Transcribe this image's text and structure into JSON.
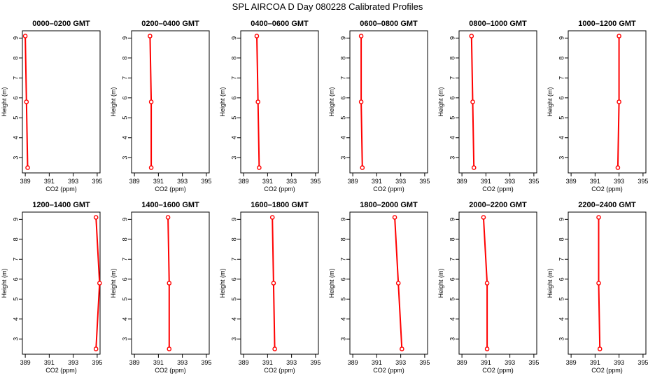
{
  "figure": {
    "title": "SPL AIRCOA D  Day 080228  Calibrated Profiles"
  },
  "style": {
    "line_color": "#ff0000",
    "point_color": "#ff0000",
    "axis_color": "#000000"
  },
  "chart_data": [
    {
      "type": "line",
      "title": "0000–0200 GMT",
      "xlabel": "CO2 (ppm)",
      "ylabel": "Height (m)",
      "xlim": [
        389,
        395
      ],
      "ylim": [
        2.5,
        9.1
      ],
      "x_ticks": [
        "389",
        "391",
        "393",
        "395"
      ],
      "y_ticks": [
        "3",
        "4",
        "5",
        "6",
        "7",
        "8",
        "9"
      ],
      "series": [
        {
          "x": [
            389.0,
            389.1,
            389.2
          ],
          "y": [
            9.1,
            5.8,
            2.5
          ]
        }
      ]
    },
    {
      "type": "line",
      "title": "0200–0400 GMT",
      "xlabel": "CO2 (ppm)",
      "ylabel": "Height (m)",
      "xlim": [
        389,
        395
      ],
      "ylim": [
        2.5,
        9.1
      ],
      "x_ticks": [
        "389",
        "391",
        "393",
        "395"
      ],
      "y_ticks": [
        "3",
        "4",
        "5",
        "6",
        "7",
        "8",
        "9"
      ],
      "series": [
        {
          "x": [
            390.3,
            390.4,
            390.4
          ],
          "y": [
            9.1,
            5.8,
            2.5
          ]
        }
      ]
    },
    {
      "type": "line",
      "title": "0400–0600 GMT",
      "xlabel": "CO2 (ppm)",
      "ylabel": "Height (m)",
      "xlim": [
        389,
        395
      ],
      "ylim": [
        2.5,
        9.1
      ],
      "x_ticks": [
        "389",
        "391",
        "393",
        "395"
      ],
      "y_ticks": [
        "3",
        "4",
        "5",
        "6",
        "7",
        "8",
        "9"
      ],
      "series": [
        {
          "x": [
            390.1,
            390.2,
            390.3
          ],
          "y": [
            9.1,
            5.8,
            2.5
          ]
        }
      ]
    },
    {
      "type": "line",
      "title": "0600–0800 GMT",
      "xlabel": "CO2 (ppm)",
      "ylabel": "Height (m)",
      "xlim": [
        389,
        395
      ],
      "ylim": [
        2.5,
        9.1
      ],
      "x_ticks": [
        "389",
        "391",
        "393",
        "395"
      ],
      "y_ticks": [
        "3",
        "4",
        "5",
        "6",
        "7",
        "8",
        "9"
      ],
      "series": [
        {
          "x": [
            389.7,
            389.7,
            389.8
          ],
          "y": [
            9.1,
            5.8,
            2.5
          ]
        }
      ]
    },
    {
      "type": "line",
      "title": "0800–1000 GMT",
      "xlabel": "CO2 (ppm)",
      "ylabel": "Height (m)",
      "xlim": [
        389,
        395
      ],
      "ylim": [
        2.5,
        9.1
      ],
      "x_ticks": [
        "389",
        "391",
        "393",
        "395"
      ],
      "y_ticks": [
        "3",
        "4",
        "5",
        "6",
        "7",
        "8",
        "9"
      ],
      "series": [
        {
          "x": [
            389.8,
            389.9,
            390.0
          ],
          "y": [
            9.1,
            5.8,
            2.5
          ]
        }
      ]
    },
    {
      "type": "line",
      "title": "1000–1200 GMT",
      "xlabel": "CO2 (ppm)",
      "ylabel": "Height (m)",
      "xlim": [
        389,
        395
      ],
      "ylim": [
        2.5,
        9.1
      ],
      "x_ticks": [
        "389",
        "391",
        "393",
        "395"
      ],
      "y_ticks": [
        "3",
        "4",
        "5",
        "6",
        "7",
        "8",
        "9"
      ],
      "series": [
        {
          "x": [
            393.0,
            393.0,
            392.9
          ],
          "y": [
            9.1,
            5.8,
            2.5
          ]
        }
      ]
    },
    {
      "type": "line",
      "title": "1200–1400 GMT",
      "xlabel": "CO2 (ppm)",
      "ylabel": "Height (m)",
      "xlim": [
        389,
        395
      ],
      "ylim": [
        2.5,
        9.1
      ],
      "x_ticks": [
        "389",
        "391",
        "393",
        "395"
      ],
      "y_ticks": [
        "3",
        "4",
        "5",
        "6",
        "7",
        "8",
        "9"
      ],
      "series": [
        {
          "x": [
            394.9,
            395.2,
            394.9
          ],
          "y": [
            9.1,
            5.8,
            2.5
          ]
        }
      ]
    },
    {
      "type": "line",
      "title": "1400–1600 GMT",
      "xlabel": "CO2 (ppm)",
      "ylabel": "Height (m)",
      "xlim": [
        389,
        395
      ],
      "ylim": [
        2.5,
        9.1
      ],
      "x_ticks": [
        "389",
        "391",
        "393",
        "395"
      ],
      "y_ticks": [
        "3",
        "4",
        "5",
        "6",
        "7",
        "8",
        "9"
      ],
      "series": [
        {
          "x": [
            391.8,
            391.9,
            391.9
          ],
          "y": [
            9.1,
            5.8,
            2.5
          ]
        }
      ]
    },
    {
      "type": "line",
      "title": "1600–1800 GMT",
      "xlabel": "CO2 (ppm)",
      "ylabel": "Height (m)",
      "xlim": [
        389,
        395
      ],
      "ylim": [
        2.5,
        9.1
      ],
      "x_ticks": [
        "389",
        "391",
        "393",
        "395"
      ],
      "y_ticks": [
        "3",
        "4",
        "5",
        "6",
        "7",
        "8",
        "9"
      ],
      "series": [
        {
          "x": [
            391.4,
            391.5,
            391.6
          ],
          "y": [
            9.1,
            5.8,
            2.5
          ]
        }
      ]
    },
    {
      "type": "line",
      "title": "1800–2000 GMT",
      "xlabel": "CO2 (ppm)",
      "ylabel": "Height (m)",
      "xlim": [
        389,
        395
      ],
      "ylim": [
        2.5,
        9.1
      ],
      "x_ticks": [
        "389",
        "391",
        "393",
        "395"
      ],
      "y_ticks": [
        "3",
        "4",
        "5",
        "6",
        "7",
        "8",
        "9"
      ],
      "series": [
        {
          "x": [
            392.5,
            392.8,
            393.1
          ],
          "y": [
            9.1,
            5.8,
            2.5
          ]
        }
      ]
    },
    {
      "type": "line",
      "title": "2000–2200 GMT",
      "xlabel": "CO2 (ppm)",
      "ylabel": "Height (m)",
      "xlim": [
        389,
        395
      ],
      "ylim": [
        2.5,
        9.1
      ],
      "x_ticks": [
        "389",
        "391",
        "393",
        "395"
      ],
      "y_ticks": [
        "3",
        "4",
        "5",
        "6",
        "7",
        "8",
        "9"
      ],
      "series": [
        {
          "x": [
            390.8,
            391.1,
            391.1
          ],
          "y": [
            9.1,
            5.8,
            2.5
          ]
        }
      ]
    },
    {
      "type": "line",
      "title": "2200–2400 GMT",
      "xlabel": "CO2 (ppm)",
      "ylabel": "Height (m)",
      "xlim": [
        389,
        395
      ],
      "ylim": [
        2.5,
        9.1
      ],
      "x_ticks": [
        "389",
        "391",
        "393",
        "395"
      ],
      "y_ticks": [
        "3",
        "4",
        "5",
        "6",
        "7",
        "8",
        "9"
      ],
      "series": [
        {
          "x": [
            391.3,
            391.3,
            391.4
          ],
          "y": [
            9.1,
            5.8,
            2.5
          ]
        }
      ]
    }
  ]
}
